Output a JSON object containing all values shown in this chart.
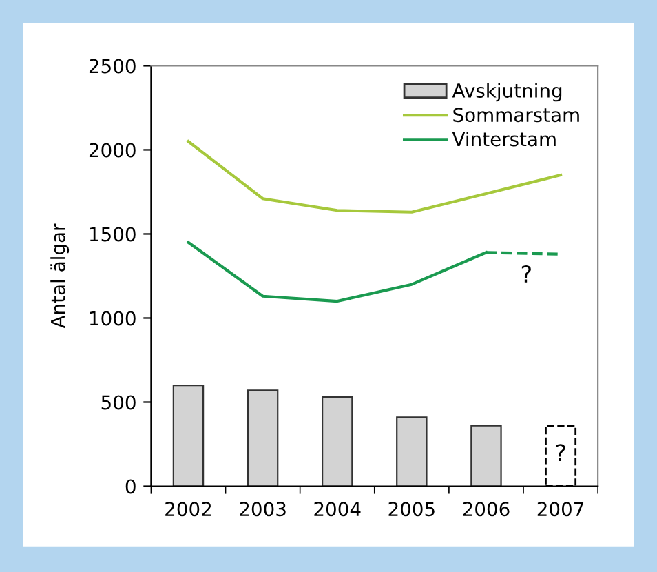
{
  "chart_data": {
    "type": "bar",
    "ylabel": "Antal älgar",
    "categories": [
      "2002",
      "2003",
      "2004",
      "2005",
      "2006",
      "2007"
    ],
    "series": [
      {
        "name": "Avskjutning",
        "color": "#d3d3d3",
        "values": [
          600,
          570,
          530,
          410,
          360,
          null
        ]
      },
      {
        "color": "#000000",
        "line_style": "dashed",
        "values": [
          null,
          null,
          null,
          null,
          null,
          360
        ]
      },
      {
        "name": "Sommarstam",
        "type": "line",
        "color": "#a6c83c",
        "values": [
          2050,
          1710,
          1640,
          1630,
          1740,
          1850
        ]
      },
      {
        "name": "Vinterstam",
        "type": "line",
        "color": "#1a9a50",
        "values": [
          1450,
          1130,
          1100,
          1200,
          1390,
          null
        ]
      },
      {
        "type": "line",
        "color": "#1a9a50",
        "line_style": "dashed",
        "values": [
          null,
          null,
          null,
          null,
          1390,
          1380
        ]
      }
    ],
    "ylim": [
      0,
      2500
    ],
    "yticks": [
      0,
      500,
      1000,
      1500,
      2000,
      2500
    ],
    "grid": false,
    "legend": "top right",
    "annotations": [
      "?",
      "?"
    ]
  }
}
